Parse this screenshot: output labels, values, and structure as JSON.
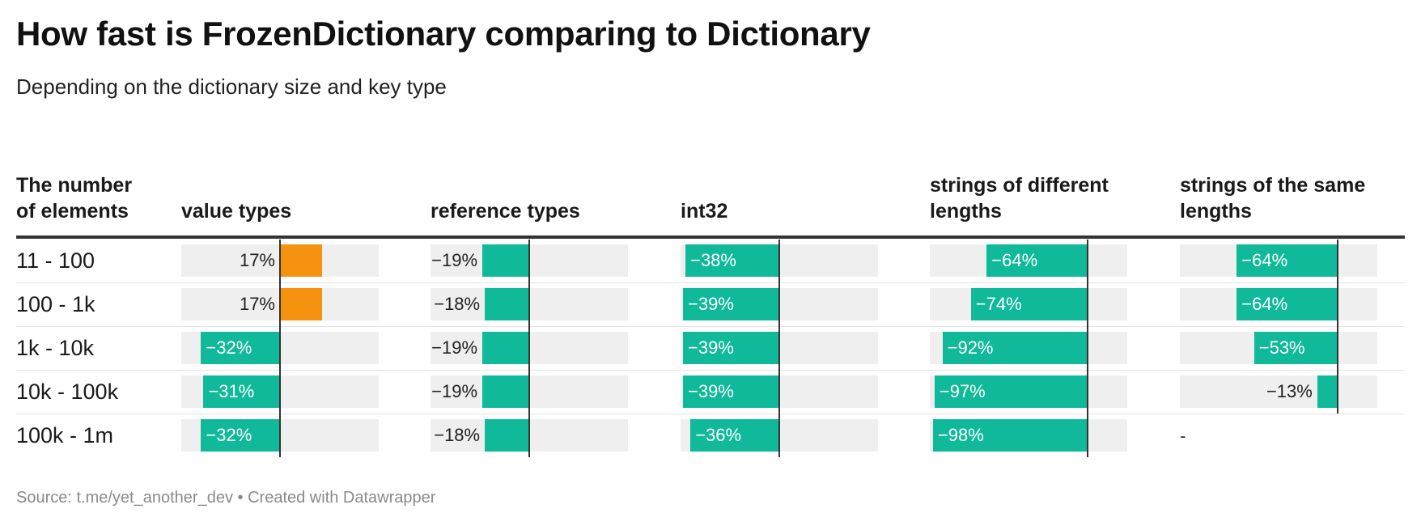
{
  "title": "How fast is FrozenDictionary comparing to Dictionary",
  "subtitle": "Depending on the dictionary size and key type",
  "row_header": "The number of elements",
  "chart_data": {
    "type": "table",
    "title": "How fast is FrozenDictionary comparing to Dictionary",
    "subtitle": "Depending on the dictionary size and key type",
    "unit": "%",
    "rows": [
      "11 - 100",
      "100 - 1k",
      "1k - 10k",
      "10k - 100k",
      "100k - 1m"
    ],
    "columns": [
      {
        "name": "value types",
        "values": [
          17,
          17,
          -32,
          -31,
          -32
        ],
        "range": [
          -40,
          40
        ]
      },
      {
        "name": "reference types",
        "values": [
          -19,
          -18,
          -19,
          -19,
          -18
        ],
        "range": [
          -40,
          40
        ]
      },
      {
        "name": "int32",
        "values": [
          -38,
          -39,
          -39,
          -39,
          -36
        ],
        "range": [
          -40,
          40
        ]
      },
      {
        "name": "strings of different lengths",
        "values": [
          -64,
          -74,
          -92,
          -97,
          -98
        ],
        "range": [
          -100,
          25
        ]
      },
      {
        "name": "strings of the same lengths",
        "values": [
          -64,
          -64,
          -53,
          -13,
          null
        ],
        "range": [
          -100,
          25
        ]
      }
    ],
    "missing_label": "-",
    "positive_color": "#f5920f",
    "negative_color": "#10b99a"
  },
  "footer": {
    "source": "Source: t.me/yet_another_dev",
    "separator": "•",
    "credit": "Created with Datawrapper"
  }
}
